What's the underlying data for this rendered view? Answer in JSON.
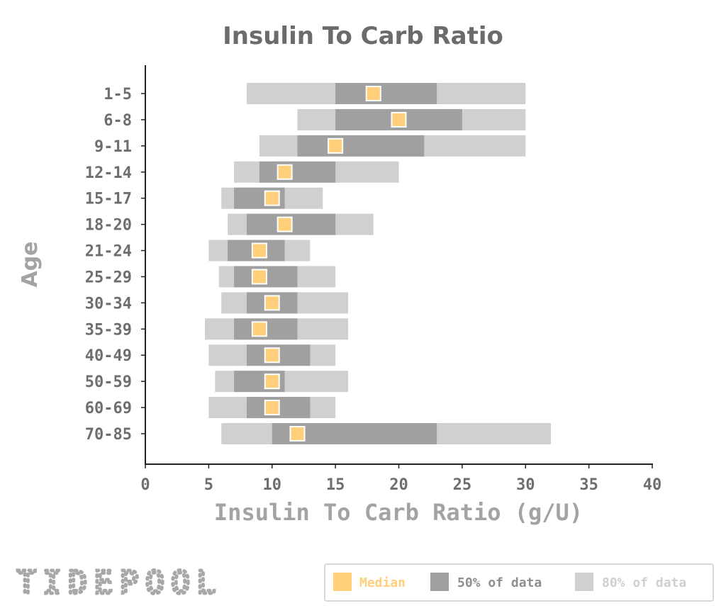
{
  "chart_data": {
    "type": "bar",
    "title": "Insulin To Carb Ratio",
    "xlabel": "Insulin To Carb Ratio (g/U)",
    "ylabel": "Age",
    "xlim": [
      0,
      40
    ],
    "xticks": [
      0,
      5,
      10,
      15,
      20,
      25,
      30,
      35,
      40
    ],
    "orientation": "horizontal",
    "grid": false,
    "legend_position": "bottom-right",
    "categories": [
      "1-5",
      "6-8",
      "9-11",
      "12-14",
      "15-17",
      "18-20",
      "21-24",
      "25-29",
      "30-34",
      "35-39",
      "40-49",
      "50-59",
      "60-69",
      "70-85"
    ],
    "series": [
      {
        "name": "80% of data",
        "color": "#d0d0d0",
        "low": [
          8,
          12,
          9,
          7,
          6,
          6.5,
          5,
          5.8,
          6,
          4.7,
          5,
          5.5,
          5,
          6
        ],
        "high": [
          30,
          30,
          30,
          20,
          14,
          18,
          13,
          15,
          16,
          16,
          15,
          16,
          15,
          32
        ]
      },
      {
        "name": "50% of data",
        "color": "#a0a0a0",
        "low": [
          15,
          15,
          12,
          9,
          7,
          8,
          6.5,
          7,
          8,
          7,
          8,
          7,
          8,
          10
        ],
        "high": [
          23,
          25,
          22,
          15,
          11,
          15,
          11,
          12,
          12,
          12,
          13,
          11,
          13,
          23
        ]
      },
      {
        "name": "Median",
        "color": "#ffcf7a",
        "values": [
          18,
          20,
          15,
          11,
          10,
          11,
          9,
          9,
          10,
          9,
          10,
          10,
          10,
          12
        ]
      }
    ]
  },
  "logo": "TIDEPOOL"
}
